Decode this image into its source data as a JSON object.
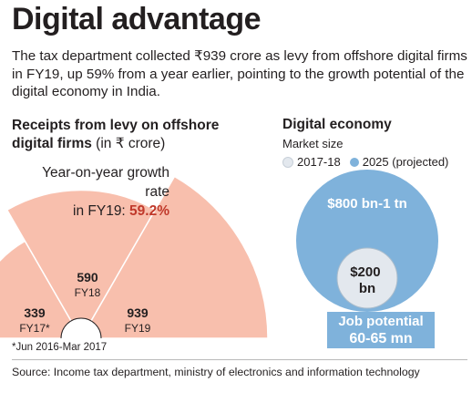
{
  "header": {
    "title": "Digital advantage",
    "intro": "The tax department collected ₹939 crore as levy from offshore digital firms in FY19, up 59% from a year earlier, pointing to the growth potential of the digital economy in India."
  },
  "left_chart": {
    "heading_bold_1": "Receipts from levy on offshore",
    "heading_bold_2": "digital firms",
    "heading_unit": " (in ₹ crore)",
    "growth_label_1": "Year-on-year growth rate",
    "growth_label_2": "in FY19: ",
    "growth_value": "59.2%",
    "footnote": "*Jun 2016-Mar 2017"
  },
  "right_chart": {
    "heading": "Digital economy",
    "subheading": "Market size",
    "legend": [
      "2017-18",
      "2025 (projected)"
    ],
    "outer_label": "$800 bn-1 tn",
    "inner_label_1": "$200",
    "inner_label_2": "bn",
    "job_title": "Job potential",
    "job_value": "60-65 mn"
  },
  "source": "Source: Income tax department, ministry of electronics and information technology",
  "colors": {
    "wedge": "#f8bfad",
    "growth_accent": "#c0392b",
    "bubble_2025": "#7fb2db",
    "bubble_2017": "#e3e8ee"
  },
  "chart_data": [
    {
      "type": "bar",
      "shape": "radial-wedges",
      "title": "Receipts from levy on offshore digital firms (in ₹ crore)",
      "categories": [
        "FY17*",
        "FY18",
        "FY19"
      ],
      "values": [
        339,
        590,
        939
      ]
    },
    {
      "type": "bubble",
      "title": "Digital economy",
      "subtitle": "Market size",
      "series": [
        {
          "name": "2017-18",
          "label": "$200 bn",
          "value": 200
        },
        {
          "name": "2025 (projected)",
          "label": "$800 bn-1 tn",
          "value": 1000
        }
      ]
    }
  ]
}
